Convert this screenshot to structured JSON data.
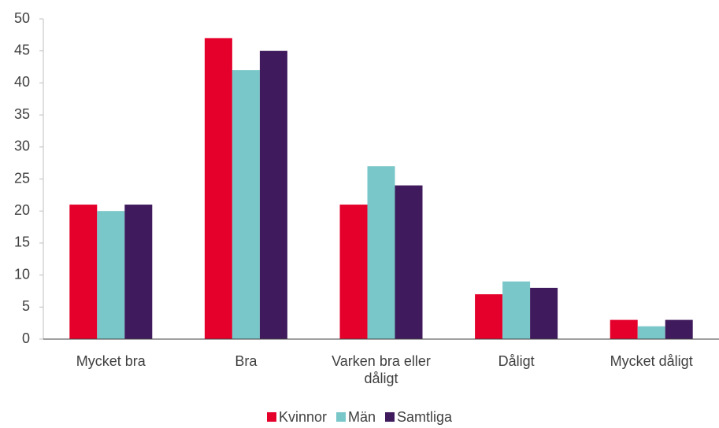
{
  "chart_data": {
    "type": "bar",
    "categories": [
      "Mycket bra",
      "Bra",
      "Varken bra eller dåligt",
      "Dåligt",
      "Mycket dåligt"
    ],
    "series": [
      {
        "name": "Kvinnor",
        "color": "#e4002b",
        "values": [
          21,
          47,
          21,
          7,
          3
        ]
      },
      {
        "name": "Män",
        "color": "#7ac7c9",
        "values": [
          20,
          42,
          27,
          9,
          2
        ]
      },
      {
        "name": "Samtliga",
        "color": "#3f1a5c",
        "values": [
          21,
          45,
          24,
          8,
          3
        ]
      }
    ],
    "ylim": [
      0,
      50
    ],
    "yticks": [
      0,
      5,
      10,
      15,
      20,
      25,
      30,
      35,
      40,
      45,
      50
    ],
    "grid": false,
    "legend": "bottom"
  }
}
